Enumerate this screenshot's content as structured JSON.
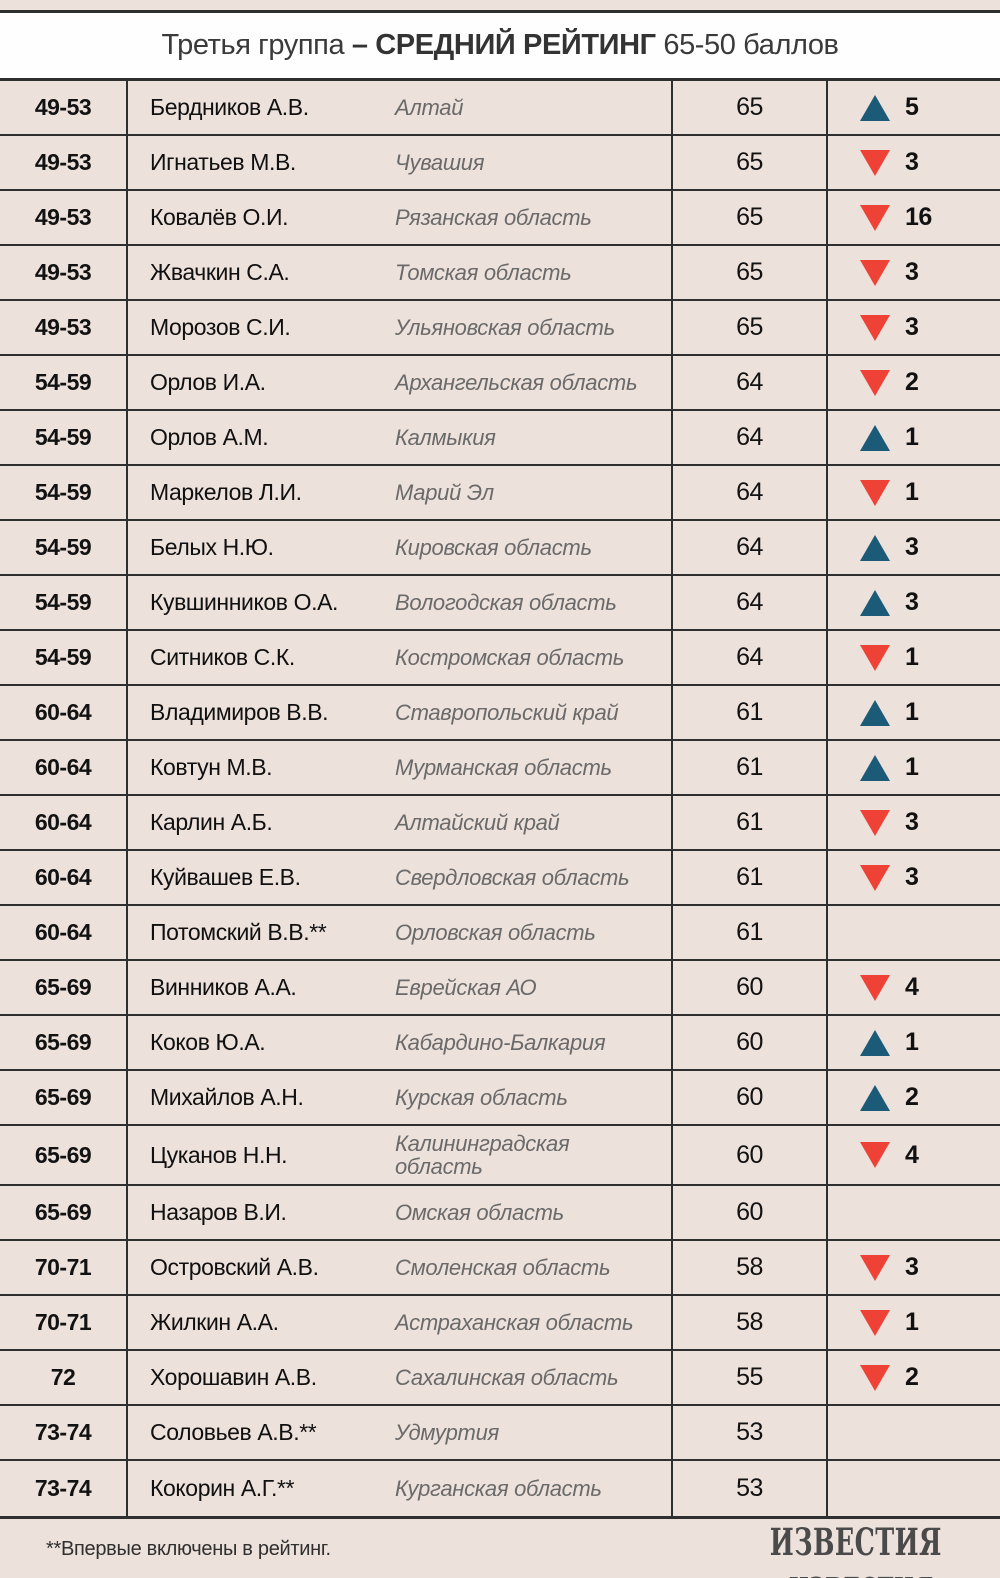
{
  "title": {
    "prefix": "Третья группа ",
    "bold": "– СРЕДНИЙ РЕЙТИНГ",
    "suffix": " 65-50 баллов"
  },
  "chart_data": {
    "type": "table",
    "title": "Третья группа – СРЕДНИЙ РЕЙТИНГ 65-50 баллов",
    "rows": [
      {
        "rank": "49-53",
        "name": "Бердников А.В.",
        "region": "Алтай",
        "score": "65",
        "direction": "up",
        "change": "5"
      },
      {
        "rank": "49-53",
        "name": "Игнатьев М.В.",
        "region": "Чувашия",
        "score": "65",
        "direction": "down",
        "change": "3"
      },
      {
        "rank": "49-53",
        "name": "Ковалёв О.И.",
        "region": "Рязанская область",
        "score": "65",
        "direction": "down",
        "change": "16"
      },
      {
        "rank": "49-53",
        "name": "Жвачкин С.А.",
        "region": "Томская область",
        "score": "65",
        "direction": "down",
        "change": "3"
      },
      {
        "rank": "49-53",
        "name": "Морозов С.И.",
        "region": "Ульяновская область",
        "score": "65",
        "direction": "down",
        "change": "3"
      },
      {
        "rank": "54-59",
        "name": "Орлов И.А.",
        "region": "Архангельская область",
        "score": "64",
        "direction": "down",
        "change": "2"
      },
      {
        "rank": "54-59",
        "name": "Орлов А.М.",
        "region": "Калмыкия",
        "score": "64",
        "direction": "up",
        "change": "1"
      },
      {
        "rank": "54-59",
        "name": "Маркелов Л.И.",
        "region": "Марий Эл",
        "score": "64",
        "direction": "down",
        "change": "1"
      },
      {
        "rank": "54-59",
        "name": "Белых Н.Ю.",
        "region": "Кировская область",
        "score": "64",
        "direction": "up",
        "change": "3"
      },
      {
        "rank": "54-59",
        "name": "Кувшинников О.А.",
        "region": "Вологодская область",
        "score": "64",
        "direction": "up",
        "change": "3"
      },
      {
        "rank": "54-59",
        "name": "Ситников С.К.",
        "region": "Костромская область",
        "score": "64",
        "direction": "down",
        "change": "1"
      },
      {
        "rank": "60-64",
        "name": "Владимиров В.В.",
        "region": "Ставропольский край",
        "score": "61",
        "direction": "up",
        "change": "1"
      },
      {
        "rank": "60-64",
        "name": "Ковтун М.В.",
        "region": "Мурманская область",
        "score": "61",
        "direction": "up",
        "change": "1"
      },
      {
        "rank": "60-64",
        "name": "Карлин А.Б.",
        "region": "Алтайский край",
        "score": "61",
        "direction": "down",
        "change": "3"
      },
      {
        "rank": "60-64",
        "name": "Куйвашев Е.В.",
        "region": "Свердловская область",
        "score": "61",
        "direction": "down",
        "change": "3"
      },
      {
        "rank": "60-64",
        "name": "Потомский В.В.**",
        "region": "Орловская область",
        "score": "61",
        "direction": "none",
        "change": ""
      },
      {
        "rank": "65-69",
        "name": "Винников А.А.",
        "region": "Еврейская АО",
        "score": "60",
        "direction": "down",
        "change": "4"
      },
      {
        "rank": "65-69",
        "name": "Коков Ю.А.",
        "region": "Кабардино-Балкария",
        "score": "60",
        "direction": "up",
        "change": "1"
      },
      {
        "rank": "65-69",
        "name": "Михайлов А.Н.",
        "region": "Курская область",
        "score": "60",
        "direction": "up",
        "change": "2"
      },
      {
        "rank": "65-69",
        "name": "Цуканов Н.Н.",
        "region": "Калининградская область",
        "score": "60",
        "direction": "down",
        "change": "4"
      },
      {
        "rank": "65-69",
        "name": "Назаров В.И.",
        "region": "Омская область",
        "score": "60",
        "direction": "none",
        "change": ""
      },
      {
        "rank": "70-71",
        "name": "Островский А.В.",
        "region": "Смоленская область",
        "score": "58",
        "direction": "down",
        "change": "3"
      },
      {
        "rank": "70-71",
        "name": "Жилкин А.А.",
        "region": "Астраханская область",
        "score": "58",
        "direction": "down",
        "change": "1"
      },
      {
        "rank": "72",
        "name": "Хорошавин А.В.",
        "region": "Сахалинская область",
        "score": "55",
        "direction": "down",
        "change": "2"
      },
      {
        "rank": "73-74",
        "name": "Соловьев А.В.**",
        "region": "Удмуртия",
        "score": "53",
        "direction": "none",
        "change": ""
      },
      {
        "rank": "73-74",
        "name": "Кокорин А.Г.**",
        "region": "Курганская область",
        "score": "53",
        "direction": "none",
        "change": ""
      }
    ]
  },
  "footer": {
    "note": "**Впервые включены в рейтинг.",
    "logo": "ИЗВЕСТИЯ"
  },
  "colors": {
    "background": "#EDE1DB",
    "line": "#2F2F2F",
    "up_triangle": "#1C5B78",
    "down_triangle": "#EF4237",
    "region_text": "#6A6A6A"
  }
}
